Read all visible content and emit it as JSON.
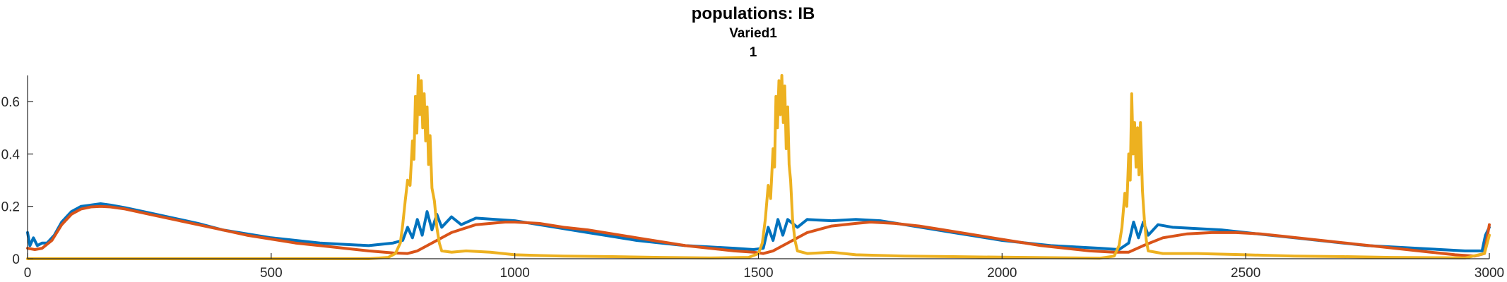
{
  "chart_data": {
    "type": "line",
    "title": "populations: IB",
    "subtitle": "Varied1",
    "subtitle2": "1",
    "xlabel": "",
    "ylabel": "",
    "xlim": [
      0,
      3000
    ],
    "ylim": [
      0,
      0.7
    ],
    "xticks": [
      0,
      500,
      1000,
      1500,
      2000,
      2500,
      3000
    ],
    "xtick_labels": [
      "0",
      "500",
      "1000",
      "1500",
      "2000",
      "2500",
      "3000"
    ],
    "yticks": [
      0,
      0.2,
      0.4,
      0.6
    ],
    "ytick_labels": [
      "0",
      "0.2",
      "0.4",
      "0.6"
    ],
    "grid": false,
    "legend": "none",
    "series": [
      {
        "color": "#0072BD",
        "points": [
          [
            0,
            0.1
          ],
          [
            5,
            0.05
          ],
          [
            12,
            0.08
          ],
          [
            20,
            0.05
          ],
          [
            30,
            0.06
          ],
          [
            40,
            0.06
          ],
          [
            55,
            0.09
          ],
          [
            70,
            0.14
          ],
          [
            90,
            0.18
          ],
          [
            110,
            0.2
          ],
          [
            130,
            0.205
          ],
          [
            150,
            0.21
          ],
          [
            170,
            0.205
          ],
          [
            200,
            0.195
          ],
          [
            250,
            0.175
          ],
          [
            300,
            0.155
          ],
          [
            350,
            0.135
          ],
          [
            400,
            0.11
          ],
          [
            450,
            0.095
          ],
          [
            500,
            0.08
          ],
          [
            550,
            0.07
          ],
          [
            600,
            0.06
          ],
          [
            650,
            0.055
          ],
          [
            700,
            0.05
          ],
          [
            750,
            0.06
          ],
          [
            770,
            0.07
          ],
          [
            780,
            0.12
          ],
          [
            790,
            0.08
          ],
          [
            800,
            0.15
          ],
          [
            810,
            0.09
          ],
          [
            820,
            0.18
          ],
          [
            830,
            0.11
          ],
          [
            840,
            0.17
          ],
          [
            850,
            0.12
          ],
          [
            870,
            0.16
          ],
          [
            890,
            0.13
          ],
          [
            920,
            0.155
          ],
          [
            960,
            0.15
          ],
          [
            1000,
            0.145
          ],
          [
            1050,
            0.13
          ],
          [
            1100,
            0.115
          ],
          [
            1150,
            0.1
          ],
          [
            1200,
            0.085
          ],
          [
            1250,
            0.07
          ],
          [
            1300,
            0.06
          ],
          [
            1350,
            0.05
          ],
          [
            1400,
            0.045
          ],
          [
            1450,
            0.04
          ],
          [
            1490,
            0.035
          ],
          [
            1510,
            0.04
          ],
          [
            1520,
            0.12
          ],
          [
            1530,
            0.07
          ],
          [
            1540,
            0.15
          ],
          [
            1550,
            0.09
          ],
          [
            1560,
            0.15
          ],
          [
            1580,
            0.12
          ],
          [
            1600,
            0.15
          ],
          [
            1650,
            0.145
          ],
          [
            1700,
            0.15
          ],
          [
            1750,
            0.145
          ],
          [
            1800,
            0.13
          ],
          [
            1850,
            0.115
          ],
          [
            1900,
            0.1
          ],
          [
            1950,
            0.085
          ],
          [
            2000,
            0.07
          ],
          [
            2050,
            0.06
          ],
          [
            2100,
            0.05
          ],
          [
            2150,
            0.045
          ],
          [
            2200,
            0.04
          ],
          [
            2240,
            0.035
          ],
          [
            2260,
            0.06
          ],
          [
            2270,
            0.14
          ],
          [
            2280,
            0.08
          ],
          [
            2290,
            0.14
          ],
          [
            2300,
            0.09
          ],
          [
            2320,
            0.13
          ],
          [
            2350,
            0.12
          ],
          [
            2400,
            0.115
          ],
          [
            2450,
            0.11
          ],
          [
            2500,
            0.1
          ],
          [
            2550,
            0.09
          ],
          [
            2600,
            0.08
          ],
          [
            2650,
            0.07
          ],
          [
            2700,
            0.06
          ],
          [
            2750,
            0.05
          ],
          [
            2800,
            0.045
          ],
          [
            2850,
            0.04
          ],
          [
            2900,
            0.035
          ],
          [
            2950,
            0.03
          ],
          [
            2985,
            0.03
          ],
          [
            2992,
            0.09
          ],
          [
            3000,
            0.12
          ]
        ]
      },
      {
        "color": "#D95319",
        "points": [
          [
            0,
            0.04
          ],
          [
            15,
            0.035
          ],
          [
            30,
            0.04
          ],
          [
            50,
            0.07
          ],
          [
            70,
            0.13
          ],
          [
            90,
            0.17
          ],
          [
            110,
            0.19
          ],
          [
            130,
            0.198
          ],
          [
            150,
            0.2
          ],
          [
            170,
            0.198
          ],
          [
            200,
            0.19
          ],
          [
            250,
            0.17
          ],
          [
            300,
            0.15
          ],
          [
            350,
            0.13
          ],
          [
            400,
            0.11
          ],
          [
            450,
            0.09
          ],
          [
            500,
            0.075
          ],
          [
            550,
            0.06
          ],
          [
            600,
            0.05
          ],
          [
            650,
            0.04
          ],
          [
            700,
            0.03
          ],
          [
            750,
            0.022
          ],
          [
            780,
            0.02
          ],
          [
            800,
            0.03
          ],
          [
            830,
            0.06
          ],
          [
            870,
            0.1
          ],
          [
            920,
            0.13
          ],
          [
            980,
            0.14
          ],
          [
            1000,
            0.14
          ],
          [
            1050,
            0.135
          ],
          [
            1100,
            0.12
          ],
          [
            1150,
            0.11
          ],
          [
            1200,
            0.095
          ],
          [
            1250,
            0.08
          ],
          [
            1300,
            0.065
          ],
          [
            1350,
            0.05
          ],
          [
            1400,
            0.04
          ],
          [
            1450,
            0.03
          ],
          [
            1490,
            0.025
          ],
          [
            1510,
            0.02
          ],
          [
            1530,
            0.03
          ],
          [
            1560,
            0.06
          ],
          [
            1600,
            0.1
          ],
          [
            1650,
            0.125
          ],
          [
            1700,
            0.135
          ],
          [
            1730,
            0.14
          ],
          [
            1780,
            0.135
          ],
          [
            1830,
            0.125
          ],
          [
            1880,
            0.11
          ],
          [
            1930,
            0.095
          ],
          [
            1980,
            0.08
          ],
          [
            2030,
            0.065
          ],
          [
            2080,
            0.05
          ],
          [
            2130,
            0.04
          ],
          [
            2180,
            0.03
          ],
          [
            2230,
            0.025
          ],
          [
            2260,
            0.025
          ],
          [
            2290,
            0.05
          ],
          [
            2330,
            0.08
          ],
          [
            2380,
            0.095
          ],
          [
            2430,
            0.1
          ],
          [
            2480,
            0.1
          ],
          [
            2530,
            0.095
          ],
          [
            2580,
            0.085
          ],
          [
            2630,
            0.075
          ],
          [
            2680,
            0.065
          ],
          [
            2730,
            0.055
          ],
          [
            2780,
            0.045
          ],
          [
            2830,
            0.035
          ],
          [
            2880,
            0.025
          ],
          [
            2930,
            0.015
          ],
          [
            2970,
            0.01
          ],
          [
            2990,
            0.02
          ],
          [
            3000,
            0.13
          ]
        ]
      },
      {
        "color": "#EDB120",
        "points": [
          [
            0,
            0.0
          ],
          [
            500,
            0.0
          ],
          [
            700,
            0.0
          ],
          [
            740,
            0.005
          ],
          [
            755,
            0.02
          ],
          [
            765,
            0.06
          ],
          [
            770,
            0.13
          ],
          [
            775,
            0.22
          ],
          [
            780,
            0.3
          ],
          [
            785,
            0.28
          ],
          [
            790,
            0.45
          ],
          [
            793,
            0.38
          ],
          [
            796,
            0.62
          ],
          [
            799,
            0.48
          ],
          [
            802,
            0.7
          ],
          [
            805,
            0.55
          ],
          [
            808,
            0.68
          ],
          [
            811,
            0.5
          ],
          [
            814,
            0.63
          ],
          [
            817,
            0.45
          ],
          [
            820,
            0.58
          ],
          [
            823,
            0.36
          ],
          [
            826,
            0.47
          ],
          [
            830,
            0.27
          ],
          [
            835,
            0.22
          ],
          [
            840,
            0.12
          ],
          [
            845,
            0.06
          ],
          [
            850,
            0.03
          ],
          [
            870,
            0.025
          ],
          [
            900,
            0.03
          ],
          [
            950,
            0.025
          ],
          [
            1000,
            0.015
          ],
          [
            1100,
            0.01
          ],
          [
            1200,
            0.008
          ],
          [
            1300,
            0.005
          ],
          [
            1400,
            0.003
          ],
          [
            1480,
            0.005
          ],
          [
            1500,
            0.02
          ],
          [
            1508,
            0.06
          ],
          [
            1514,
            0.15
          ],
          [
            1520,
            0.28
          ],
          [
            1525,
            0.23
          ],
          [
            1530,
            0.42
          ],
          [
            1533,
            0.35
          ],
          [
            1536,
            0.62
          ],
          [
            1539,
            0.5
          ],
          [
            1542,
            0.68
          ],
          [
            1545,
            0.55
          ],
          [
            1548,
            0.7
          ],
          [
            1551,
            0.52
          ],
          [
            1554,
            0.66
          ],
          [
            1557,
            0.42
          ],
          [
            1560,
            0.58
          ],
          [
            1563,
            0.36
          ],
          [
            1566,
            0.3
          ],
          [
            1570,
            0.15
          ],
          [
            1575,
            0.07
          ],
          [
            1580,
            0.03
          ],
          [
            1600,
            0.02
          ],
          [
            1650,
            0.025
          ],
          [
            1700,
            0.015
          ],
          [
            1800,
            0.01
          ],
          [
            1900,
            0.008
          ],
          [
            2000,
            0.006
          ],
          [
            2100,
            0.004
          ],
          [
            2200,
            0.002
          ],
          [
            2230,
            0.01
          ],
          [
            2240,
            0.05
          ],
          [
            2246,
            0.12
          ],
          [
            2252,
            0.25
          ],
          [
            2256,
            0.2
          ],
          [
            2260,
            0.4
          ],
          [
            2263,
            0.3
          ],
          [
            2266,
            0.63
          ],
          [
            2269,
            0.4
          ],
          [
            2272,
            0.52
          ],
          [
            2275,
            0.35
          ],
          [
            2278,
            0.5
          ],
          [
            2281,
            0.32
          ],
          [
            2284,
            0.52
          ],
          [
            2288,
            0.26
          ],
          [
            2292,
            0.15
          ],
          [
            2296,
            0.07
          ],
          [
            2300,
            0.03
          ],
          [
            2330,
            0.02
          ],
          [
            2400,
            0.02
          ],
          [
            2500,
            0.015
          ],
          [
            2600,
            0.01
          ],
          [
            2700,
            0.008
          ],
          [
            2800,
            0.005
          ],
          [
            2900,
            0.004
          ],
          [
            2950,
            0.003
          ],
          [
            2990,
            0.02
          ],
          [
            3000,
            0.09
          ]
        ]
      }
    ]
  }
}
